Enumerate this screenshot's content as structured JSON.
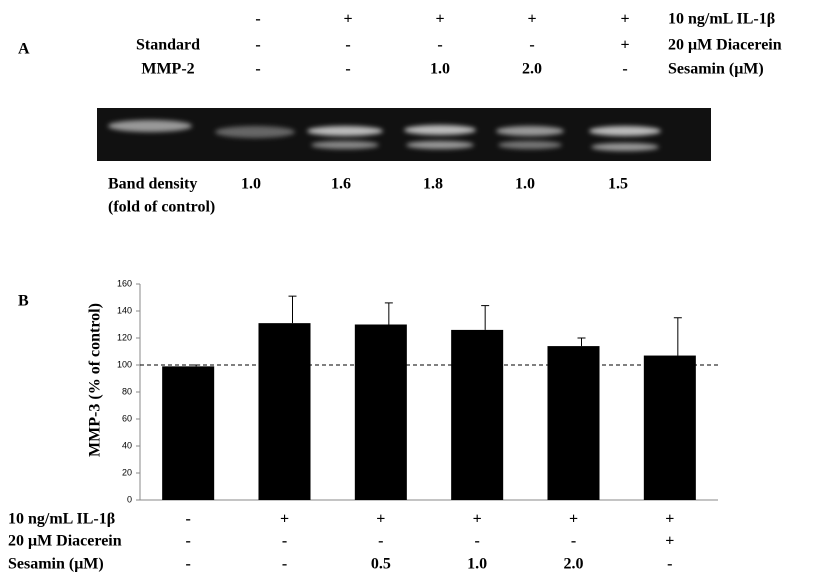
{
  "panel_a": {
    "label": "A",
    "standard_label": [
      "Standard",
      "MMP-2"
    ],
    "conditions": [
      {
        "label": "10 ng/mL IL-1β",
        "values": [
          "-",
          "+",
          "+",
          "+",
          "+"
        ]
      },
      {
        "label": "20 μM Diacerein",
        "values": [
          "-",
          "-",
          "-",
          "-",
          "+"
        ]
      },
      {
        "label": "Sesamin (μM)",
        "values": [
          "-",
          "-",
          "1.0",
          "2.0",
          "-"
        ]
      }
    ],
    "band_density_label": [
      "Band density",
      "(fold of control)"
    ],
    "band_density": [
      "1.0",
      "1.6",
      "1.8",
      "1.0",
      "1.5"
    ]
  },
  "chart_data": {
    "type": "bar",
    "panel_label": "B",
    "y_label": "MMP-3 (% of control)",
    "values": [
      99,
      131,
      130,
      126,
      114,
      107
    ],
    "errors": [
      1,
      20,
      16,
      18,
      6,
      28
    ],
    "color": "#000000",
    "ylim": [
      0,
      160
    ],
    "yticks": [
      0,
      20,
      40,
      60,
      80,
      100,
      120,
      140,
      160
    ],
    "reference_line": 100,
    "conditions": [
      {
        "label": "10 ng/mL IL-1β",
        "values": [
          "-",
          "+",
          "+",
          "+",
          "+",
          "+"
        ]
      },
      {
        "label": "20 μM Diacerein",
        "values": [
          "-",
          "-",
          "-",
          "-",
          "-",
          "+"
        ]
      },
      {
        "label": "Sesamin (μM)",
        "values": [
          "-",
          "-",
          "0.5",
          "1.0",
          "2.0",
          "-"
        ]
      }
    ]
  }
}
